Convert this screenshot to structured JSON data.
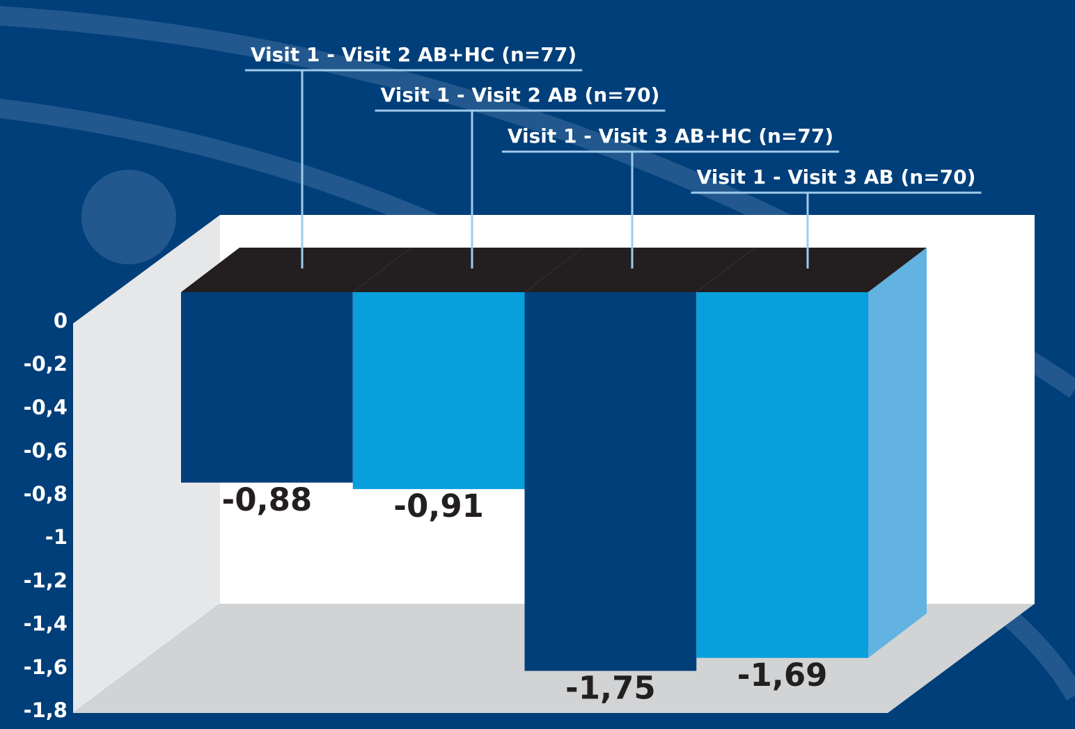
{
  "chart_data": {
    "type": "bar",
    "categories": [
      "Visit 1 - Visit 2 AB+HC (n=77)",
      "Visit 1 - Visit 2 AB (n=70)",
      "Visit 1 - Visit 3 AB+HC (n=77)",
      "Visit 1 - Visit 3 AB (n=70)"
    ],
    "values": [
      -0.88,
      -0.91,
      -1.75,
      -1.69
    ],
    "value_labels": [
      "-0,88",
      "-0,91",
      "-1,75",
      "-1,69"
    ],
    "colors": [
      "#003f7a",
      "#089fdc",
      "#003f7a",
      "#089fdc"
    ],
    "ylim": [
      -1.8,
      0
    ],
    "yticks": [
      0,
      {
        "value": -0.2,
        "label": "-0,2"
      },
      {
        "value": -0.4,
        "label": "-0,4"
      },
      {
        "value": -0.6,
        "label": "-0,6"
      },
      {
        "value": -0.8,
        "label": "-0,8"
      },
      -1,
      {
        "value": -1.2,
        "label": "-1,2"
      },
      {
        "value": -1.4,
        "label": "-1,4"
      },
      {
        "value": -1.6,
        "label": "-1,6"
      },
      {
        "value": -1.8,
        "label": "-1,8"
      }
    ]
  }
}
